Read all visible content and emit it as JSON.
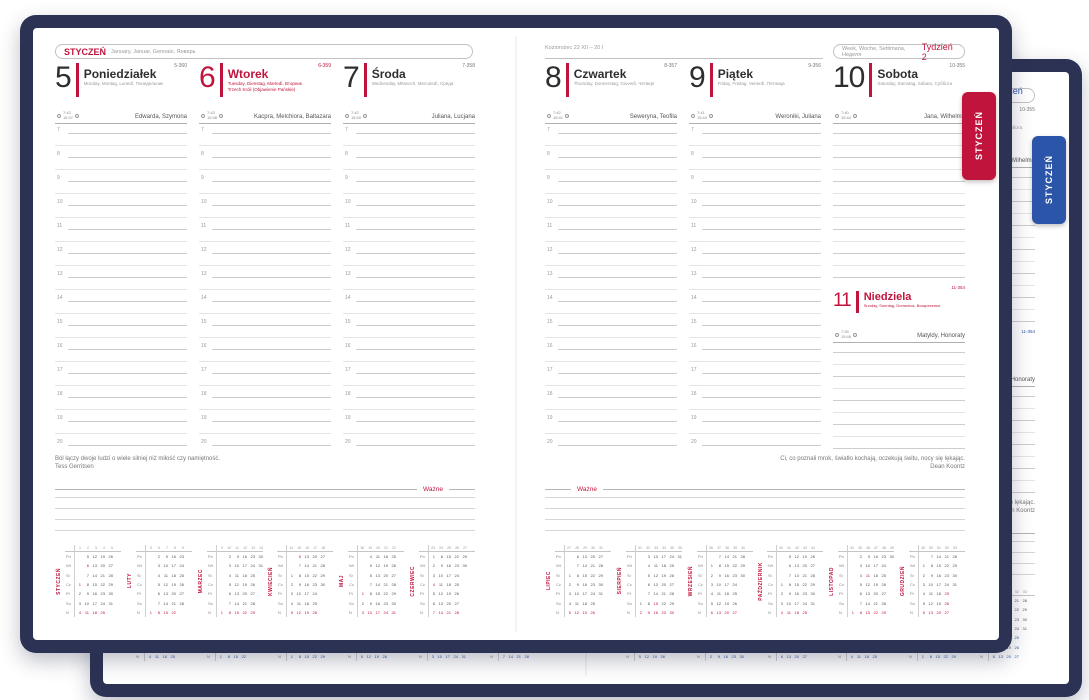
{
  "planner": {
    "cover_color": "#2c3254",
    "accent_red": "#c0143c",
    "accent_blue": "#2a55a8",
    "tab_label": "STYCZEŃ",
    "left_header": {
      "month": "STYCZEŃ",
      "translations": "January, Januar, Gennaio, Январь"
    },
    "right_header": {
      "zodiac": "Koziorożec 22 XII – 20 I",
      "week_words": "Week, Woche, Settimana, Неделя",
      "week_label": "Tydzień 2"
    },
    "hours": [
      "7",
      "8",
      "9",
      "10",
      "11",
      "12",
      "13",
      "14",
      "15",
      "16",
      "17",
      "18",
      "19",
      "20"
    ],
    "days": [
      {
        "num": "5",
        "name": "Poniedziałek",
        "subtitle": "Monday, Montag, Lunedì, Понедельник",
        "holiday": "",
        "doy": "5-360",
        "sunrise": "7:43",
        "sunset": "15:37",
        "names": "Edwarda, Szymona",
        "red": false
      },
      {
        "num": "6",
        "name": "Wtorek",
        "subtitle": "Tuesday, Dienstag, Martedì, Вторник",
        "holiday": "Trzech Króli (Objawienie Pańskie)",
        "doy": "6-359",
        "sunrise": "7:43",
        "sunset": "15:38",
        "names": "Kacpra, Melchiora, Baltazara",
        "red": true
      },
      {
        "num": "7",
        "name": "Środa",
        "subtitle": "Wednesday, Mittwoch, Mercoledì, Среда",
        "holiday": "",
        "doy": "7-358",
        "sunrise": "7:42",
        "sunset": "15:40",
        "names": "Juliana, Lucjana",
        "red": false
      },
      {
        "num": "8",
        "name": "Czwartek",
        "subtitle": "Thursday, Donnerstag, Giovedì, Четверг",
        "holiday": "",
        "doy": "8-357",
        "sunrise": "7:42",
        "sunset": "15:41",
        "names": "Seweryna, Teofila",
        "red": false
      },
      {
        "num": "9",
        "name": "Piątek",
        "subtitle": "Friday, Freitag, Venerdì, Пятница",
        "holiday": "",
        "doy": "9-356",
        "sunrise": "7:41",
        "sunset": "15:43",
        "names": "Weroniki, Juliana",
        "red": false
      },
      {
        "num": "10",
        "name": "Sobota",
        "subtitle": "Saturday, Samstag, Sabato, Суббота",
        "holiday": "",
        "doy": "10-355",
        "sunrise": "7:40",
        "sunset": "15:44",
        "names": "Jana, Wilhelma",
        "red": false
      },
      {
        "num": "11",
        "name": "Niedziela",
        "subtitle": "Sunday, Sonntag, Domenica, Воскресенье",
        "holiday": "",
        "doy": "11-354",
        "sunrise": "7:39",
        "sunset": "15:46",
        "names": "Matyldy, Honoraty",
        "red": true
      }
    ],
    "quotes": {
      "left": {
        "text": "Ból łączy dwoje ludzi o wiele silniej niż miłość czy namiętność.",
        "author": "Tess Gerritsen"
      },
      "right": {
        "text": "Ci, co poznali mrok, światło kochają, oczekują świtu, nocy się lękając.",
        "author": "Dean Koontz"
      }
    },
    "wazne_label": "Ważne",
    "day_row_labels": [
      "Pn",
      "Wt",
      "Śr",
      "Cz",
      "Pt",
      "So",
      "N"
    ],
    "mini_calendars": [
      {
        "month": "STYCZEŃ",
        "weeks": [
          "1",
          "2",
          "3",
          "4",
          "5",
          ""
        ],
        "red": [
          1,
          4,
          6,
          11,
          18,
          25
        ],
        "rows": [
          [
            "",
            "5",
            "12",
            "19",
            "26",
            ""
          ],
          [
            "",
            "6",
            "13",
            "20",
            "27",
            ""
          ],
          [
            "",
            "7",
            "14",
            "21",
            "28",
            ""
          ],
          [
            "1",
            "8",
            "15",
            "22",
            "29",
            ""
          ],
          [
            "2",
            "9",
            "16",
            "23",
            "30",
            ""
          ],
          [
            "3",
            "10",
            "17",
            "24",
            "31",
            ""
          ],
          [
            "4",
            "11",
            "18",
            "25",
            "",
            ""
          ]
        ]
      },
      {
        "month": "LUTY",
        "weeks": [
          "5",
          "6",
          "7",
          "8",
          "9",
          ""
        ],
        "red": [
          1,
          8,
          15,
          22
        ],
        "rows": [
          [
            "",
            "2",
            "9",
            "16",
            "23",
            ""
          ],
          [
            "",
            "3",
            "10",
            "17",
            "24",
            ""
          ],
          [
            "",
            "4",
            "11",
            "18",
            "25",
            ""
          ],
          [
            "",
            "5",
            "12",
            "19",
            "26",
            ""
          ],
          [
            "",
            "6",
            "13",
            "20",
            "27",
            ""
          ],
          [
            "",
            "7",
            "14",
            "21",
            "28",
            ""
          ],
          [
            "1",
            "8",
            "15",
            "22",
            "",
            ""
          ]
        ]
      },
      {
        "month": "MARZEC",
        "weeks": [
          "9",
          "10",
          "11",
          "12",
          "13",
          "14"
        ],
        "red": [
          1,
          8,
          15,
          22,
          29
        ],
        "rows": [
          [
            "",
            "2",
            "9",
            "16",
            "23",
            "30"
          ],
          [
            "",
            "3",
            "10",
            "17",
            "24",
            "31"
          ],
          [
            "",
            "4",
            "11",
            "18",
            "25",
            ""
          ],
          [
            "",
            "5",
            "12",
            "19",
            "26",
            ""
          ],
          [
            "",
            "6",
            "13",
            "20",
            "27",
            ""
          ],
          [
            "",
            "7",
            "14",
            "21",
            "28",
            ""
          ],
          [
            "1",
            "8",
            "15",
            "22",
            "29",
            ""
          ]
        ]
      },
      {
        "month": "KWIECIEŃ",
        "weeks": [
          "14",
          "15",
          "16",
          "17",
          "18",
          ""
        ],
        "red": [
          5,
          6,
          12,
          19,
          26
        ],
        "rows": [
          [
            "",
            "6",
            "13",
            "20",
            "27",
            ""
          ],
          [
            "",
            "7",
            "14",
            "21",
            "28",
            ""
          ],
          [
            "1",
            "8",
            "15",
            "22",
            "29",
            ""
          ],
          [
            "2",
            "9",
            "16",
            "23",
            "30",
            ""
          ],
          [
            "3",
            "10",
            "17",
            "24",
            "",
            ""
          ],
          [
            "4",
            "11",
            "18",
            "25",
            "",
            ""
          ],
          [
            "5",
            "12",
            "19",
            "26",
            "",
            ""
          ]
        ]
      },
      {
        "month": "MAJ",
        "weeks": [
          "18",
          "19",
          "20",
          "21",
          "22",
          ""
        ],
        "red": [
          1,
          3,
          10,
          17,
          24,
          31
        ],
        "rows": [
          [
            "",
            "4",
            "11",
            "18",
            "25",
            ""
          ],
          [
            "",
            "5",
            "12",
            "19",
            "26",
            ""
          ],
          [
            "",
            "6",
            "13",
            "20",
            "27",
            ""
          ],
          [
            "",
            "7",
            "14",
            "21",
            "28",
            ""
          ],
          [
            "1",
            "8",
            "15",
            "22",
            "29",
            ""
          ],
          [
            "2",
            "9",
            "16",
            "23",
            "30",
            ""
          ],
          [
            "3",
            "10",
            "17",
            "24",
            "31",
            ""
          ]
        ]
      },
      {
        "month": "CZERWIEC",
        "weeks": [
          "23",
          "24",
          "25",
          "26",
          "27",
          ""
        ],
        "red": [
          4,
          7,
          14,
          21,
          28
        ],
        "rows": [
          [
            "1",
            "8",
            "15",
            "22",
            "29",
            ""
          ],
          [
            "2",
            "9",
            "16",
            "23",
            "30",
            ""
          ],
          [
            "3",
            "10",
            "17",
            "24",
            "",
            ""
          ],
          [
            "4",
            "11",
            "18",
            "25",
            "",
            ""
          ],
          [
            "5",
            "12",
            "19",
            "26",
            "",
            ""
          ],
          [
            "6",
            "13",
            "20",
            "27",
            "",
            ""
          ],
          [
            "7",
            "14",
            "21",
            "28",
            "",
            ""
          ]
        ]
      },
      {
        "month": "LIPIEC",
        "weeks": [
          "27",
          "28",
          "29",
          "30",
          "31",
          ""
        ],
        "red": [
          5,
          12,
          19,
          26
        ],
        "rows": [
          [
            "",
            "6",
            "13",
            "20",
            "27",
            ""
          ],
          [
            "",
            "7",
            "14",
            "21",
            "28",
            ""
          ],
          [
            "1",
            "8",
            "15",
            "22",
            "29",
            ""
          ],
          [
            "2",
            "9",
            "16",
            "23",
            "30",
            ""
          ],
          [
            "3",
            "10",
            "17",
            "24",
            "31",
            ""
          ],
          [
            "4",
            "11",
            "18",
            "25",
            "",
            ""
          ],
          [
            "5",
            "12",
            "19",
            "26",
            "",
            ""
          ]
        ]
      },
      {
        "month": "SIERPIEŃ",
        "weeks": [
          "31",
          "32",
          "33",
          "34",
          "35",
          "36"
        ],
        "red": [
          2,
          9,
          15,
          16,
          23,
          30
        ],
        "rows": [
          [
            "",
            "3",
            "10",
            "17",
            "24",
            "31"
          ],
          [
            "",
            "4",
            "11",
            "18",
            "25",
            ""
          ],
          [
            "",
            "5",
            "12",
            "19",
            "26",
            ""
          ],
          [
            "",
            "6",
            "13",
            "20",
            "27",
            ""
          ],
          [
            "",
            "7",
            "14",
            "21",
            "28",
            ""
          ],
          [
            "1",
            "8",
            "15",
            "22",
            "29",
            ""
          ],
          [
            "2",
            "9",
            "16",
            "23",
            "30",
            ""
          ]
        ]
      },
      {
        "month": "WRZESIEŃ",
        "weeks": [
          "36",
          "37",
          "38",
          "39",
          "40",
          ""
        ],
        "red": [
          6,
          13,
          20,
          27
        ],
        "rows": [
          [
            "",
            "7",
            "14",
            "21",
            "28",
            ""
          ],
          [
            "1",
            "8",
            "15",
            "22",
            "29",
            ""
          ],
          [
            "2",
            "9",
            "16",
            "23",
            "30",
            ""
          ],
          [
            "3",
            "10",
            "17",
            "24",
            "",
            ""
          ],
          [
            "4",
            "11",
            "18",
            "25",
            "",
            ""
          ],
          [
            "5",
            "12",
            "19",
            "26",
            "",
            ""
          ],
          [
            "6",
            "13",
            "20",
            "27",
            "",
            ""
          ]
        ]
      },
      {
        "month": "PAŹDZIERNIK",
        "weeks": [
          "40",
          "41",
          "42",
          "43",
          "44",
          ""
        ],
        "red": [
          4,
          11,
          18,
          25
        ],
        "rows": [
          [
            "",
            "5",
            "12",
            "19",
            "26",
            ""
          ],
          [
            "",
            "6",
            "13",
            "20",
            "27",
            ""
          ],
          [
            "",
            "7",
            "14",
            "21",
            "28",
            ""
          ],
          [
            "1",
            "8",
            "15",
            "22",
            "29",
            ""
          ],
          [
            "2",
            "9",
            "16",
            "23",
            "30",
            ""
          ],
          [
            "3",
            "10",
            "17",
            "24",
            "31",
            ""
          ],
          [
            "4",
            "11",
            "18",
            "25",
            "",
            ""
          ]
        ]
      },
      {
        "month": "LISTOPAD",
        "weeks": [
          "44",
          "45",
          "46",
          "47",
          "48",
          "49"
        ],
        "red": [
          1,
          8,
          11,
          15,
          22,
          29
        ],
        "rows": [
          [
            "",
            "2",
            "9",
            "16",
            "23",
            "30"
          ],
          [
            "",
            "3",
            "10",
            "17",
            "24",
            ""
          ],
          [
            "",
            "4",
            "11",
            "18",
            "25",
            ""
          ],
          [
            "",
            "5",
            "12",
            "19",
            "26",
            ""
          ],
          [
            "",
            "6",
            "13",
            "20",
            "27",
            ""
          ],
          [
            "",
            "7",
            "14",
            "21",
            "28",
            ""
          ],
          [
            "1",
            "8",
            "15",
            "22",
            "29",
            ""
          ]
        ]
      },
      {
        "month": "GRUDZIEŃ",
        "weeks": [
          "49",
          "50",
          "51",
          "52",
          "53",
          ""
        ],
        "red": [
          6,
          13,
          20,
          25,
          26,
          27
        ],
        "rows": [
          [
            "",
            "7",
            "14",
            "21",
            "28",
            ""
          ],
          [
            "1",
            "8",
            "15",
            "22",
            "29",
            ""
          ],
          [
            "2",
            "9",
            "16",
            "23",
            "30",
            ""
          ],
          [
            "3",
            "10",
            "17",
            "24",
            "31",
            ""
          ],
          [
            "4",
            "11",
            "18",
            "25",
            "",
            ""
          ],
          [
            "5",
            "12",
            "19",
            "26",
            "",
            ""
          ],
          [
            "6",
            "13",
            "20",
            "27",
            "",
            ""
          ]
        ]
      }
    ]
  }
}
